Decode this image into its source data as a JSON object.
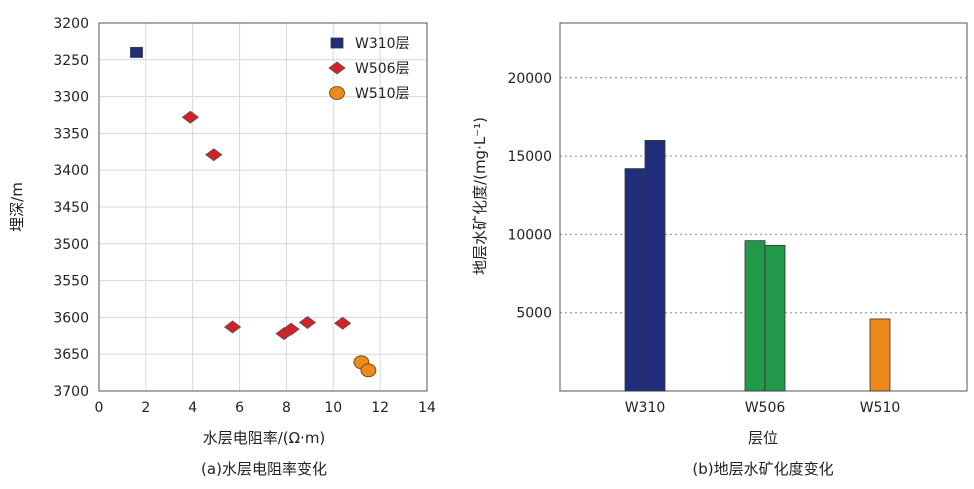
{
  "chart_data": [
    {
      "type": "scatter",
      "caption": "(a)水层电阻率变化",
      "xlabel": "水层电阻率/(Ω·m)",
      "ylabel": "埋深/m",
      "xlim": [
        0,
        14
      ],
      "ylim": [
        3200,
        3700
      ],
      "y_inverted": true,
      "x_ticks": [
        "0",
        "2",
        "4",
        "6",
        "8",
        "10",
        "12",
        "14"
      ],
      "y_ticks": [
        "3200",
        "3250",
        "3300",
        "3350",
        "3400",
        "3450",
        "3500",
        "3550",
        "3600",
        "3650",
        "3700"
      ],
      "grid": true,
      "legend_position": "top-right",
      "series": [
        {
          "name": "W310层",
          "marker": "square",
          "color": "#1f2d7a",
          "points": [
            [
              1.6,
              3240
            ]
          ]
        },
        {
          "name": "W506层",
          "marker": "diamond",
          "color": "#d42027",
          "points": [
            [
              3.9,
              3328
            ],
            [
              4.9,
              3379
            ],
            [
              5.7,
              3613
            ],
            [
              7.9,
              3622
            ],
            [
              8.2,
              3616
            ],
            [
              8.9,
              3607
            ],
            [
              10.4,
              3608
            ]
          ]
        },
        {
          "name": "W510层",
          "marker": "circle",
          "color": "#ee8a1c",
          "points": [
            [
              11.2,
              3661
            ],
            [
              11.5,
              3672
            ]
          ]
        }
      ]
    },
    {
      "type": "bar",
      "caption": "(b)地层水矿化度变化",
      "xlabel": "层位",
      "ylabel": "地层水矿化度/(mg·L⁻¹)",
      "ylim": [
        0,
        23500
      ],
      "y_ticks": [
        "5000",
        "10000",
        "15000",
        "20000"
      ],
      "grid": "horizontal-dotted",
      "categories": [
        "W310",
        "W506",
        "W510"
      ],
      "groups": [
        {
          "category": "W310",
          "color": "#1f2d7a",
          "values": [
            14200,
            16000
          ]
        },
        {
          "category": "W506",
          "color": "#23974a",
          "values": [
            9600,
            9300
          ]
        },
        {
          "category": "W510",
          "color": "#ee8a1c",
          "values": [
            4600
          ]
        }
      ]
    }
  ]
}
